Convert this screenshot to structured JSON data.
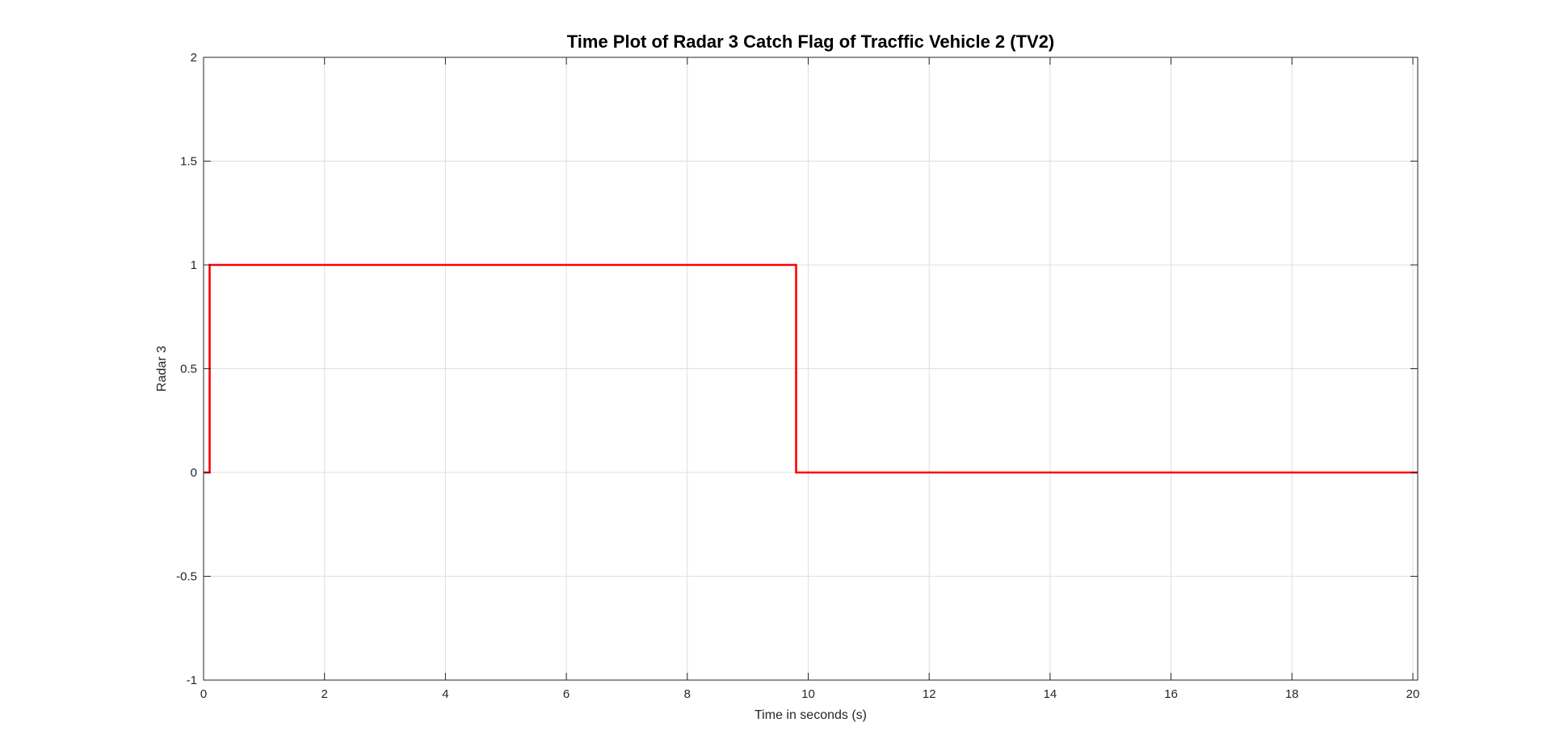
{
  "chart_data": {
    "type": "line",
    "title": "Time Plot of Radar 3 Catch Flag of Tracffic Vehicle 2 (TV2)",
    "xlabel": "Time in seconds (s)",
    "ylabel": "Radar 3",
    "xlim": [
      0,
      20.08
    ],
    "ylim": [
      -1,
      2
    ],
    "xticks": [
      0,
      2,
      4,
      6,
      8,
      10,
      12,
      14,
      16,
      18,
      20
    ],
    "xtick_labels": [
      "0",
      "2",
      "4",
      "6",
      "8",
      "10",
      "12",
      "14",
      "16",
      "18",
      "20"
    ],
    "yticks": [
      -1,
      -0.5,
      0,
      0.5,
      1,
      1.5,
      2
    ],
    "ytick_labels": [
      "-1",
      "-0.5",
      "0",
      "0.5",
      "1",
      "1.5",
      "2"
    ],
    "grid": true,
    "series": [
      {
        "color": "#ff0000",
        "step": true,
        "x": [
          0,
          0.1,
          0.1,
          9.8,
          9.8,
          20.08
        ],
        "y": [
          0,
          0,
          1,
          1,
          0,
          0
        ]
      }
    ]
  }
}
